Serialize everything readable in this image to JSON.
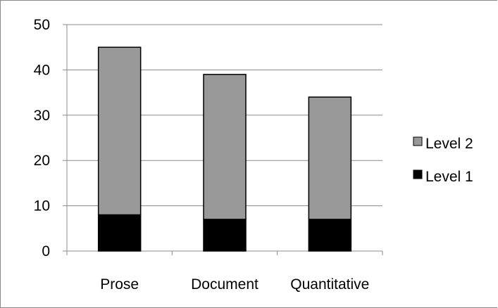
{
  "chart_data": {
    "type": "bar",
    "stacked": true,
    "categories": [
      "Prose",
      "Document",
      "Quantitative"
    ],
    "series": [
      {
        "name": "Level 1",
        "values": [
          8,
          7,
          7
        ],
        "color": "#000000"
      },
      {
        "name": "Level 2",
        "values": [
          37,
          32,
          27
        ],
        "color": "#999999"
      }
    ],
    "ylim": [
      0,
      50
    ],
    "yticks": [
      0,
      10,
      20,
      30,
      40,
      50
    ],
    "grid": true,
    "legend_position": "right",
    "title": "",
    "xlabel": "",
    "ylabel": ""
  }
}
